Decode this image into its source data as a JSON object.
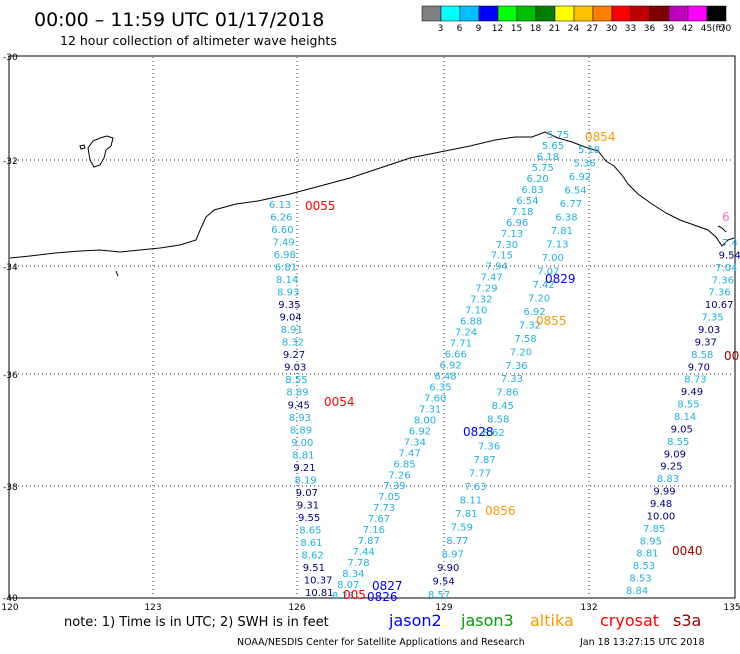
{
  "header": {
    "title": "00:00 – 11:59 UTC 01/17/2018",
    "subtitle": "12 hour collection of altimeter wave heights"
  },
  "legend": {
    "unit": "(ft)",
    "swatches": [
      {
        "label": "3",
        "color": "#7f7f7f"
      },
      {
        "label": "6",
        "color": "#00ffff"
      },
      {
        "label": "9",
        "color": "#00bfff"
      },
      {
        "label": "12",
        "color": "#0000ff"
      },
      {
        "label": "15",
        "color": "#00ff00"
      },
      {
        "label": "18",
        "color": "#00bf00"
      },
      {
        "label": "21",
        "color": "#007f00"
      },
      {
        "label": "24",
        "color": "#ffff00"
      },
      {
        "label": "27",
        "color": "#ffbf00"
      },
      {
        "label": "30",
        "color": "#ff7f00"
      },
      {
        "label": "33",
        "color": "#ff0000"
      },
      {
        "label": "36",
        "color": "#bf0000"
      },
      {
        "label": "39",
        "color": "#7f0000"
      },
      {
        "label": "42",
        "color": "#bf00bf"
      },
      {
        "label": "45",
        "color": "#ff00ff"
      },
      {
        "label": "70",
        "color": "#000000"
      }
    ]
  },
  "axes": {
    "lon_ticks": [
      "120",
      "123",
      "126",
      "129",
      "132",
      "135"
    ],
    "lat_ticks": [
      "-30",
      "-32",
      "-34",
      "-36",
      "-38",
      "-40"
    ]
  },
  "footer": {
    "note": "note: 1) Time is in UTC; 2) SWH is in feet",
    "credit": "NOAA/NESDIS Center for Satellite Applications and Research",
    "timestamp": "Jan 18 13:27:15 UTC 2018"
  },
  "satellites": [
    {
      "name": "jason2",
      "color": "#0000ff"
    },
    {
      "name": "jason3",
      "color": "#00a000"
    },
    {
      "name": "altika",
      "color": "#ff9900"
    },
    {
      "name": "cryosat",
      "color": "#ff0000"
    },
    {
      "name": "s3a",
      "color": "#a00000"
    }
  ],
  "colors": {
    "light": "#1fb2e6",
    "dark": "#000080"
  },
  "pass_labels": [
    {
      "text": "0055",
      "color": "#ff0000"
    },
    {
      "text": "0054",
      "color": "#ff0000"
    },
    {
      "text": "0854",
      "color": "#ff9900"
    },
    {
      "text": "0829",
      "color": "#0000ff"
    },
    {
      "text": "0855",
      "color": "#ff9900"
    },
    {
      "text": "0828",
      "color": "#0000ff"
    },
    {
      "text": "0856",
      "color": "#ff9900"
    },
    {
      "text": "0827",
      "color": "#0000ff"
    },
    {
      "text": "0826",
      "color": "#0000ff"
    },
    {
      "text": "005",
      "color": "#ff0000"
    },
    {
      "text": "0040",
      "color": "#a00000"
    },
    {
      "text": "00",
      "color": "#a00000"
    },
    {
      "text": "6",
      "color": "#ff66cc"
    }
  ],
  "tracks": [
    {
      "id": "cryosat-0055",
      "values": [
        {
          "v": "6.13",
          "c": "l"
        },
        {
          "v": "6.26",
          "c": "l"
        },
        {
          "v": "6.60",
          "c": "l"
        },
        {
          "v": "7.49",
          "c": "l"
        },
        {
          "v": "6.98",
          "c": "l"
        },
        {
          "v": "6.81",
          "c": "l"
        },
        {
          "v": "8.14",
          "c": "l"
        },
        {
          "v": "8.93",
          "c": "l"
        },
        {
          "v": "9.35",
          "c": "d"
        },
        {
          "v": "9.04",
          "c": "d"
        },
        {
          "v": "8.91",
          "c": "l"
        },
        {
          "v": "8.32",
          "c": "l"
        },
        {
          "v": "9.27",
          "c": "d"
        },
        {
          "v": "9.03",
          "c": "d"
        },
        {
          "v": "8.55",
          "c": "l"
        },
        {
          "v": "8.89",
          "c": "l"
        },
        {
          "v": "9.45",
          "c": "d"
        },
        {
          "v": "8.93",
          "c": "l"
        },
        {
          "v": "8.89",
          "c": "l"
        },
        {
          "v": "9.00",
          "c": "l"
        },
        {
          "v": "8.81",
          "c": "l"
        },
        {
          "v": "9.21",
          "c": "d"
        },
        {
          "v": "8.19",
          "c": "l"
        },
        {
          "v": "9.07",
          "c": "d"
        },
        {
          "v": "9.31",
          "c": "d"
        },
        {
          "v": "9.55",
          "c": "d"
        },
        {
          "v": "8.65",
          "c": "l"
        },
        {
          "v": "8.61",
          "c": "l"
        },
        {
          "v": "8.62",
          "c": "l"
        },
        {
          "v": "9.51",
          "c": "d"
        },
        {
          "v": "10.37",
          "c": "d"
        },
        {
          "v": "10.81",
          "c": "d"
        }
      ]
    },
    {
      "id": "jason-a",
      "values": [
        {
          "v": "8.28",
          "c": "l"
        },
        {
          "v": "8.07",
          "c": "l"
        },
        {
          "v": "8.34",
          "c": "l"
        },
        {
          "v": "7.78",
          "c": "l"
        },
        {
          "v": "7.44",
          "c": "l"
        },
        {
          "v": "7.87",
          "c": "l"
        },
        {
          "v": "7.16",
          "c": "l"
        },
        {
          "v": "7.67",
          "c": "l"
        },
        {
          "v": "7.73",
          "c": "l"
        },
        {
          "v": "7.05",
          "c": "l"
        },
        {
          "v": "7.39",
          "c": "l"
        },
        {
          "v": "7.26",
          "c": "l"
        },
        {
          "v": "6.85",
          "c": "l"
        },
        {
          "v": "7.47",
          "c": "l"
        },
        {
          "v": "7.34",
          "c": "l"
        },
        {
          "v": "6.92",
          "c": "l"
        },
        {
          "v": "8.00",
          "c": "l"
        },
        {
          "v": "7.31",
          "c": "l"
        },
        {
          "v": "7.60",
          "c": "l"
        },
        {
          "v": "6.35",
          "c": "l"
        },
        {
          "v": "6.48",
          "c": "l"
        },
        {
          "v": "6.92",
          "c": "l"
        },
        {
          "v": "6.66",
          "c": "l"
        },
        {
          "v": "7.71",
          "c": "l"
        },
        {
          "v": "7.24",
          "c": "l"
        },
        {
          "v": "6.88",
          "c": "l"
        },
        {
          "v": "7.10",
          "c": "l"
        },
        {
          "v": "7.32",
          "c": "l"
        },
        {
          "v": "7.29",
          "c": "l"
        },
        {
          "v": "7.47",
          "c": "l"
        },
        {
          "v": "7.94",
          "c": "l"
        },
        {
          "v": "7.15",
          "c": "l"
        },
        {
          "v": "7.30",
          "c": "l"
        },
        {
          "v": "7.13",
          "c": "l"
        },
        {
          "v": "6.96",
          "c": "l"
        },
        {
          "v": "7.18",
          "c": "l"
        },
        {
          "v": "6.54",
          "c": "l"
        },
        {
          "v": "6.83",
          "c": "l"
        },
        {
          "v": "6.20",
          "c": "l"
        },
        {
          "v": "5.75",
          "c": "l"
        },
        {
          "v": "6.18",
          "c": "l"
        },
        {
          "v": "5.65",
          "c": "l"
        },
        {
          "v": "5.75",
          "c": "l"
        }
      ]
    },
    {
      "id": "jason-b",
      "values": [
        {
          "v": "8.57",
          "c": "l"
        },
        {
          "v": "9.54",
          "c": "d"
        },
        {
          "v": "9.90",
          "c": "d"
        },
        {
          "v": "8.97",
          "c": "l"
        },
        {
          "v": "8.77",
          "c": "l"
        },
        {
          "v": "7.59",
          "c": "l"
        },
        {
          "v": "7.81",
          "c": "l"
        },
        {
          "v": "8.11",
          "c": "l"
        },
        {
          "v": "7.63",
          "c": "l"
        },
        {
          "v": "7.77",
          "c": "l"
        },
        {
          "v": "7.87",
          "c": "l"
        },
        {
          "v": "7.36",
          "c": "l"
        },
        {
          "v": "8.62",
          "c": "l"
        },
        {
          "v": "8.58",
          "c": "l"
        },
        {
          "v": "8.45",
          "c": "l"
        },
        {
          "v": "7.86",
          "c": "l"
        },
        {
          "v": "7.33",
          "c": "l"
        },
        {
          "v": "7.36",
          "c": "l"
        },
        {
          "v": "7.20",
          "c": "l"
        },
        {
          "v": "7.58",
          "c": "l"
        },
        {
          "v": "7.32",
          "c": "l"
        },
        {
          "v": "6.92",
          "c": "l"
        },
        {
          "v": "7.20",
          "c": "l"
        },
        {
          "v": "7.42",
          "c": "l"
        },
        {
          "v": "7.07",
          "c": "l"
        },
        {
          "v": "7.00",
          "c": "l"
        },
        {
          "v": "7.13",
          "c": "l"
        },
        {
          "v": "7.81",
          "c": "l"
        },
        {
          "v": "6.38",
          "c": "l"
        },
        {
          "v": "6.77",
          "c": "l"
        },
        {
          "v": "6.54",
          "c": "l"
        },
        {
          "v": "6.92",
          "c": "l"
        },
        {
          "v": "5.36",
          "c": "l"
        },
        {
          "v": "5.18",
          "c": "l"
        }
      ]
    },
    {
      "id": "s3a-0040",
      "values": [
        {
          "v": "8.84",
          "c": "l"
        },
        {
          "v": "8.53",
          "c": "l"
        },
        {
          "v": "8.53",
          "c": "l"
        },
        {
          "v": "8.81",
          "c": "l"
        },
        {
          "v": "8.95",
          "c": "l"
        },
        {
          "v": "7.85",
          "c": "l"
        },
        {
          "v": "10.00",
          "c": "d"
        },
        {
          "v": "9.48",
          "c": "d"
        },
        {
          "v": "9.99",
          "c": "d"
        },
        {
          "v": "8.83",
          "c": "l"
        },
        {
          "v": "9.25",
          "c": "d"
        },
        {
          "v": "9.09",
          "c": "d"
        },
        {
          "v": "8.55",
          "c": "l"
        },
        {
          "v": "9.05",
          "c": "d"
        },
        {
          "v": "8.14",
          "c": "l"
        },
        {
          "v": "8.55",
          "c": "l"
        },
        {
          "v": "9.49",
          "c": "d"
        },
        {
          "v": "8.73",
          "c": "l"
        },
        {
          "v": "9.70",
          "c": "d"
        },
        {
          "v": "8.58",
          "c": "l"
        },
        {
          "v": "9.37",
          "c": "d"
        },
        {
          "v": "9.03",
          "c": "d"
        },
        {
          "v": "7.35",
          "c": "l"
        },
        {
          "v": "10.67",
          "c": "d"
        },
        {
          "v": "7.36",
          "c": "l"
        },
        {
          "v": "7.36",
          "c": "l"
        },
        {
          "v": "7.04",
          "c": "l"
        },
        {
          "v": "9.54",
          "c": "d"
        },
        {
          "v": "7.4",
          "c": "l"
        }
      ]
    }
  ]
}
